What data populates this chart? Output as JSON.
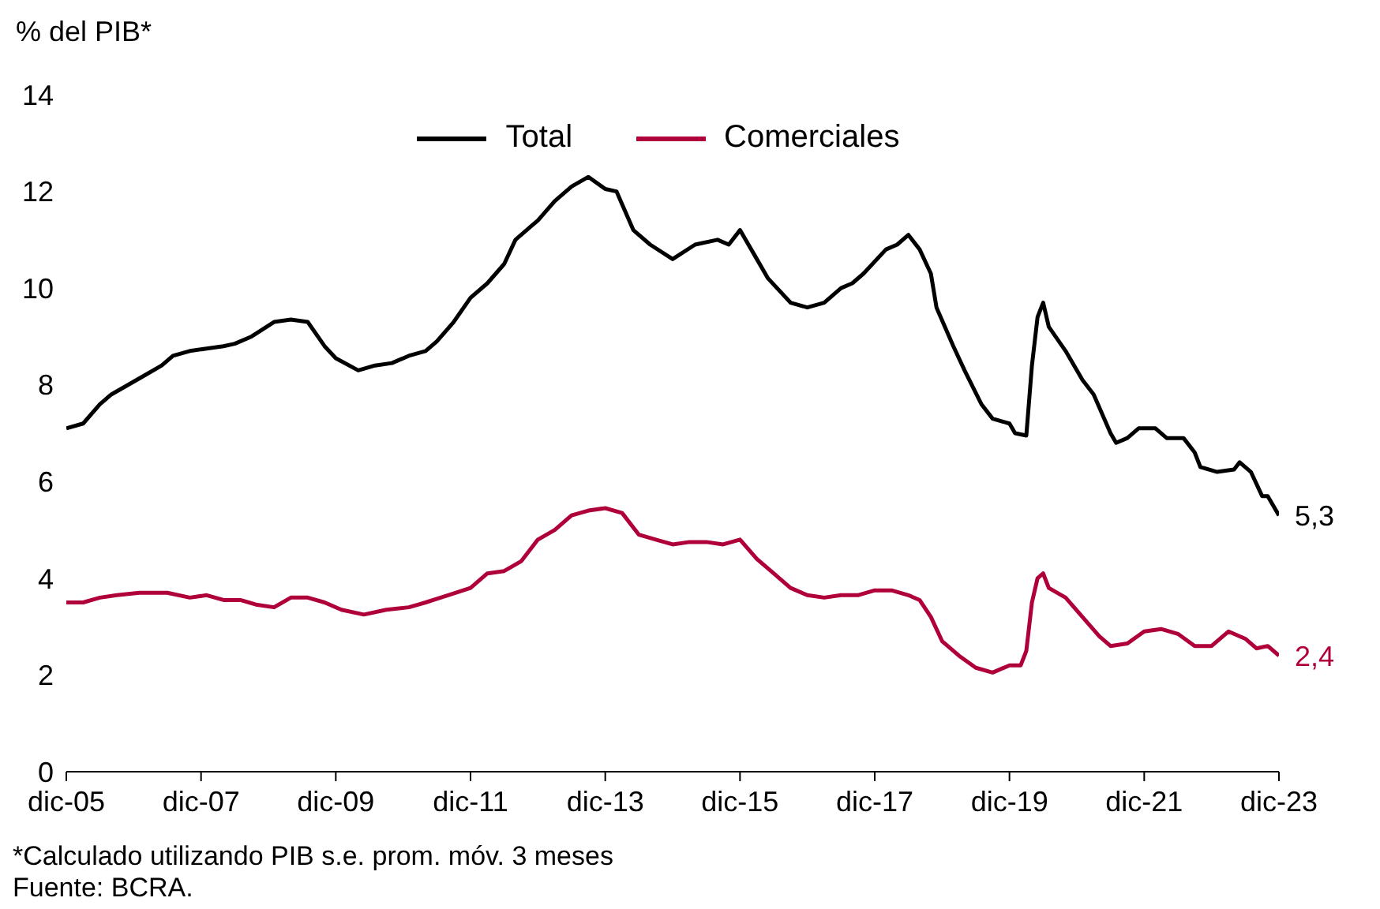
{
  "chart_data": {
    "type": "line",
    "ylabel": "% del PIB*",
    "xlim": [
      "2005-12",
      "2023-12"
    ],
    "xticks": [
      {
        "value": "2005-12",
        "label": "dic-05"
      },
      {
        "value": "2007-12",
        "label": "dic-07"
      },
      {
        "value": "2009-12",
        "label": "dic-09"
      },
      {
        "value": "2011-12",
        "label": "dic-11"
      },
      {
        "value": "2013-12",
        "label": "dic-13"
      },
      {
        "value": "2015-12",
        "label": "dic-15"
      },
      {
        "value": "2017-12",
        "label": "dic-17"
      },
      {
        "value": "2019-12",
        "label": "dic-19"
      },
      {
        "value": "2021-12",
        "label": "dic-21"
      },
      {
        "value": "2023-12",
        "label": "dic-23"
      }
    ],
    "ylim": [
      0,
      14
    ],
    "yticks": [
      0,
      2,
      4,
      6,
      8,
      10,
      12,
      14
    ],
    "grid": false,
    "legend": "top",
    "marker": "none",
    "line_style": "solid",
    "series": [
      {
        "name": "Total",
        "color": "#000000",
        "x": [
          "2005-12",
          "2006-03",
          "2006-06",
          "2006-08",
          "2006-11",
          "2007-02",
          "2007-05",
          "2007-07",
          "2007-10",
          "2008-01",
          "2008-04",
          "2008-06",
          "2008-09",
          "2009-01",
          "2009-04",
          "2009-07",
          "2009-10",
          "2009-12",
          "2010-04",
          "2010-07",
          "2010-10",
          "2011-01",
          "2011-04",
          "2011-06",
          "2011-09",
          "2011-12",
          "2012-03",
          "2012-06",
          "2012-08",
          "2012-11",
          "2012-12",
          "2013-03",
          "2013-06",
          "2013-09",
          "2013-12",
          "2014-02",
          "2014-05",
          "2014-08",
          "2014-12",
          "2015-04",
          "2015-08",
          "2015-10",
          "2015-12",
          "2016-03",
          "2016-05",
          "2016-09",
          "2016-12",
          "2017-03",
          "2017-06",
          "2017-08",
          "2017-10",
          "2018-02",
          "2018-04",
          "2018-06",
          "2018-08",
          "2018-10",
          "2018-11",
          "2019-02",
          "2019-04",
          "2019-07",
          "2019-09",
          "2019-12",
          "2020-01",
          "2020-03",
          "2020-04",
          "2020-05",
          "2020-06",
          "2020-07",
          "2020-10",
          "2021-01",
          "2021-03",
          "2021-06",
          "2021-07",
          "2021-09",
          "2021-11",
          "2022-02",
          "2022-04",
          "2022-07",
          "2022-09",
          "2022-10",
          "2023-01",
          "2023-04",
          "2023-05",
          "2023-07",
          "2023-09",
          "2023-10",
          "2023-12"
        ],
        "values": [
          7.1,
          7.2,
          7.6,
          7.8,
          8.0,
          8.2,
          8.4,
          8.6,
          8.7,
          8.75,
          8.8,
          8.85,
          9.0,
          9.3,
          9.35,
          9.3,
          8.8,
          8.55,
          8.3,
          8.4,
          8.45,
          8.6,
          8.7,
          8.9,
          9.3,
          9.8,
          10.1,
          10.5,
          11.0,
          11.3,
          11.4,
          11.8,
          12.1,
          12.3,
          12.05,
          12.0,
          11.2,
          10.9,
          10.6,
          10.9,
          11.0,
          10.9,
          11.2,
          10.6,
          10.2,
          9.7,
          9.6,
          9.7,
          10.0,
          10.1,
          10.3,
          10.8,
          10.9,
          11.1,
          10.8,
          10.3,
          9.6,
          8.8,
          8.3,
          7.6,
          7.3,
          7.2,
          7.0,
          6.95,
          8.4,
          9.4,
          9.7,
          9.2,
          8.7,
          8.1,
          7.8,
          7.0,
          6.8,
          6.9,
          7.1,
          7.1,
          6.9,
          6.9,
          6.6,
          6.3,
          6.2,
          6.25,
          6.4,
          6.2,
          5.7,
          5.7,
          5.3
        ]
      },
      {
        "name": "Comerciales",
        "color": "#b0003a",
        "x": [
          "2005-12",
          "2006-03",
          "2006-06",
          "2006-09",
          "2007-01",
          "2007-06",
          "2007-10",
          "2008-01",
          "2008-04",
          "2008-07",
          "2008-10",
          "2009-01",
          "2009-04",
          "2009-07",
          "2009-10",
          "2010-01",
          "2010-05",
          "2010-09",
          "2011-01",
          "2011-04",
          "2011-08",
          "2011-12",
          "2012-03",
          "2012-06",
          "2012-09",
          "2012-12",
          "2013-03",
          "2013-06",
          "2013-09",
          "2013-12",
          "2014-03",
          "2014-06",
          "2014-09",
          "2014-12",
          "2015-03",
          "2015-06",
          "2015-09",
          "2015-12",
          "2016-03",
          "2016-06",
          "2016-09",
          "2016-12",
          "2017-03",
          "2017-06",
          "2017-09",
          "2017-12",
          "2018-03",
          "2018-06",
          "2018-08",
          "2018-10",
          "2018-12",
          "2019-03",
          "2019-06",
          "2019-09",
          "2019-12",
          "2020-02",
          "2020-03",
          "2020-04",
          "2020-05",
          "2020-06",
          "2020-07",
          "2020-10",
          "2021-01",
          "2021-04",
          "2021-06",
          "2021-09",
          "2021-12",
          "2022-03",
          "2022-06",
          "2022-09",
          "2022-12",
          "2023-03",
          "2023-06",
          "2023-08",
          "2023-10",
          "2023-12"
        ],
        "values": [
          3.5,
          3.5,
          3.6,
          3.65,
          3.7,
          3.7,
          3.6,
          3.65,
          3.55,
          3.55,
          3.45,
          3.4,
          3.6,
          3.6,
          3.5,
          3.35,
          3.25,
          3.35,
          3.4,
          3.5,
          3.65,
          3.8,
          4.1,
          4.15,
          4.35,
          4.8,
          5.0,
          5.3,
          5.4,
          5.45,
          5.35,
          4.9,
          4.8,
          4.7,
          4.75,
          4.75,
          4.7,
          4.8,
          4.4,
          4.1,
          3.8,
          3.65,
          3.6,
          3.65,
          3.65,
          3.75,
          3.75,
          3.65,
          3.55,
          3.2,
          2.7,
          2.4,
          2.15,
          2.05,
          2.2,
          2.2,
          2.5,
          3.5,
          4.0,
          4.1,
          3.8,
          3.6,
          3.2,
          2.8,
          2.6,
          2.65,
          2.9,
          2.95,
          2.85,
          2.6,
          2.6,
          2.9,
          2.75,
          2.55,
          2.6,
          2.4
        ]
      }
    ],
    "annotations": [
      {
        "text": "5,3",
        "x": "2023-12",
        "y": 5.3
      },
      {
        "text": "2,4",
        "x": "2023-12",
        "y": 2.4
      },
      "*Calculado utilizando PIB s.e. prom. móv. 3 meses",
      "Fuente: BCRA."
    ]
  }
}
